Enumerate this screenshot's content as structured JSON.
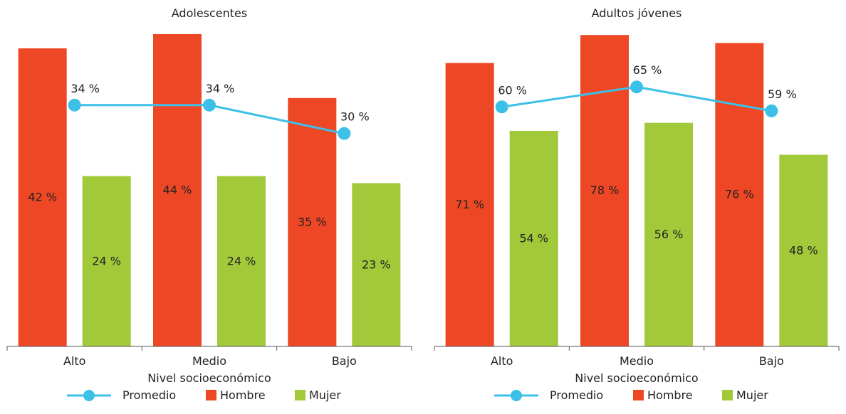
{
  "colors": {
    "hombre": "#ee4725",
    "mujer": "#a1c93a",
    "promedio": "#3cc0e8",
    "axis": "#555555"
  },
  "chart_data": [
    {
      "type": "bar",
      "title": "Adolescentes",
      "xlabel": "Nivel socioeconómico",
      "ylabel": "",
      "categories": [
        "Alto",
        "Medio",
        "Bajo"
      ],
      "ylim": [
        0,
        45
      ],
      "series": [
        {
          "name": "Hombre",
          "kind": "bar",
          "values": [
            42,
            44,
            35
          ],
          "labels": [
            "42 %",
            "44 %",
            "35 %"
          ]
        },
        {
          "name": "Mujer",
          "kind": "bar",
          "values": [
            24,
            24,
            23
          ],
          "labels": [
            "24 %",
            "24 %",
            "23 %"
          ]
        },
        {
          "name": "Promedio",
          "kind": "line",
          "values": [
            34,
            34,
            30
          ],
          "labels": [
            "34 %",
            "34 %",
            "30 %"
          ]
        }
      ],
      "legend": [
        "Promedio",
        "Hombre",
        "Mujer"
      ],
      "legend_position": "bottom"
    },
    {
      "type": "bar",
      "title": "Adultos jóvenes",
      "xlabel": "Nivel socioeconómico",
      "ylabel": "",
      "categories": [
        "Alto",
        "Medio",
        "Bajo"
      ],
      "ylim": [
        0,
        80
      ],
      "series": [
        {
          "name": "Hombre",
          "kind": "bar",
          "values": [
            71,
            78,
            76
          ],
          "labels": [
            "71 %",
            "78 %",
            "76 %"
          ]
        },
        {
          "name": "Mujer",
          "kind": "bar",
          "values": [
            54,
            56,
            48
          ],
          "labels": [
            "54 %",
            "56 %",
            "48 %"
          ]
        },
        {
          "name": "Promedio",
          "kind": "line",
          "values": [
            60,
            65,
            59
          ],
          "labels": [
            "60 %",
            "65 %",
            "59 %"
          ]
        }
      ],
      "legend": [
        "Promedio",
        "Hombre",
        "Mujer"
      ],
      "legend_position": "bottom"
    }
  ]
}
